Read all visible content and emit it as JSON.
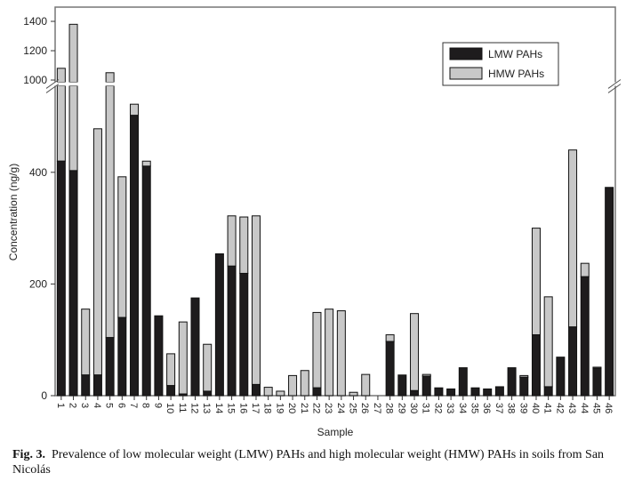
{
  "chart_data": {
    "type": "bar",
    "stacked": true,
    "xlabel": "Sample",
    "ylabel": "Concentration (ng/g)",
    "ylim": [
      0,
      1450
    ],
    "axis_break": [
      555,
      985
    ],
    "yticks": [
      0,
      200,
      400,
      1000,
      1200,
      1400
    ],
    "legend_position": "top-right",
    "categories": [
      "1",
      "2",
      "3",
      "4",
      "5",
      "6",
      "7",
      "8",
      "9",
      "10",
      "11",
      "12",
      "13",
      "14",
      "15",
      "16",
      "17",
      "18",
      "19",
      "20",
      "21",
      "22",
      "23",
      "24",
      "25",
      "26",
      "27",
      "28",
      "29",
      "30",
      "31",
      "32",
      "33",
      "34",
      "35",
      "36",
      "37",
      "38",
      "39",
      "40",
      "41",
      "42",
      "43",
      "44",
      "45",
      "46"
    ],
    "series": [
      {
        "name": "LMW PAHs",
        "color": "#1e1c1d",
        "values": [
          420,
          403,
          37,
          37,
          104,
          140,
          502,
          411,
          143,
          18,
          3,
          175,
          8,
          254,
          232,
          219,
          20,
          0,
          0,
          0,
          0,
          14,
          0,
          0,
          0,
          0,
          0,
          97,
          37,
          9,
          35,
          14,
          12,
          50,
          14,
          12,
          16,
          50,
          33,
          109,
          16,
          69,
          123,
          213,
          49,
          373
        ]
      },
      {
        "name": "HMW PAHs",
        "color": "#c8c8c8",
        "values": [
          660,
          977,
          118,
          441,
          946,
          252,
          20,
          9,
          0,
          57,
          129,
          0,
          84,
          0,
          90,
          101,
          302,
          15,
          8,
          36,
          45,
          135,
          155,
          152,
          6,
          38,
          0,
          12,
          0,
          138,
          3,
          0,
          0,
          0,
          0,
          0,
          0,
          0,
          3,
          191,
          161,
          0,
          317,
          24,
          2,
          0
        ]
      }
    ]
  },
  "caption": {
    "label": "Fig. 3.",
    "text": "Prevalence of low molecular weight (LMW) PAHs and high molecular weight (HMW) PAHs in soils from San Nicolás"
  }
}
